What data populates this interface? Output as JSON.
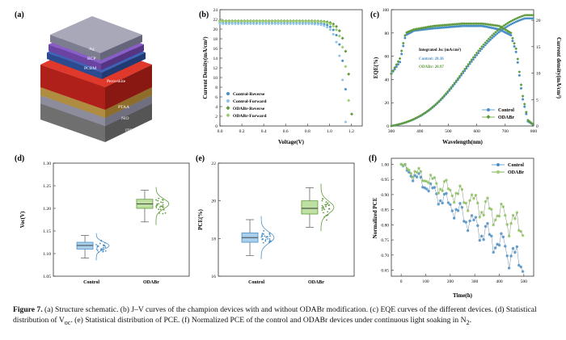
{
  "panels": {
    "a": {
      "label": "(a)",
      "layers": [
        "Ag",
        "BCP",
        "PCBM",
        "Perovskite",
        "PTAA",
        "NiO",
        "ITO"
      ]
    },
    "b": {
      "label": "(b)",
      "ylabel": "Current Density(mA/cm²)",
      "xlabel": "Voltage(V)",
      "legend": [
        "Control-Reverse",
        "Control-Forward",
        "ODABr-Reverse",
        "ODABr-Forward"
      ]
    },
    "c": {
      "label": "(c)",
      "ylabel": "EQE(%)",
      "ylabel2": "Current density(mA/cm²)",
      "xlabel": "Wavelength(nm)",
      "annotation_title": "Integrated Jsc (mA/cm²)",
      "annotation_control": "Control:  20.36",
      "annotation_odabr": "ODABr:   20.97",
      "legend": [
        "Control",
        "ODABr"
      ]
    },
    "d": {
      "label": "(d)",
      "ylabel": "Voc(V)"
    },
    "e": {
      "label": "(e)",
      "ylabel": "PCE(%)"
    },
    "f": {
      "label": "(f)",
      "ylabel": "Normalized PCE",
      "xlabel": "Time(h)",
      "legend": [
        "Control",
        "ODABr"
      ]
    }
  },
  "caption": {
    "fig_label": "Figure 7.",
    "text_1": "(a) Structure schematic. (b) J–V curves of the champion devices with and without ODABr modification. (c) EQE curves of the different devices. (d) Statistical distribution of V",
    "text_sub": "oc",
    "text_2": ". (e) Statistical distribution of PCE. (f) Normalized PCE of the control and ODABr devices under continuous light soaking in N",
    "text_sub2": "2",
    "text_3": "."
  },
  "colors": {
    "control": "#4a90c8",
    "control_light": "#8ec3ea",
    "odabr": "#5f9a3c",
    "odabr_light": "#9ccd6e"
  },
  "chart_data": [
    {
      "id": "b",
      "type": "line",
      "title": "",
      "xlabel": "Voltage(V)",
      "ylabel": "Current Density(mA/cm²)",
      "xlim": [
        0,
        1.3
      ],
      "ylim": [
        0,
        24
      ],
      "xticks": [
        "0.0",
        "0.2",
        "0.4",
        "0.6",
        "0.8",
        "1.0",
        "1.2"
      ],
      "yticks": [
        "0",
        "2",
        "4",
        "6",
        "8",
        "10",
        "12",
        "14",
        "16",
        "18",
        "20",
        "22",
        "24"
      ],
      "series": [
        {
          "name": "Control-Reverse",
          "jsc": 21.3,
          "voc": 1.17
        },
        {
          "name": "Control-Forward",
          "jsc": 21.1,
          "voc": 1.15
        },
        {
          "name": "ODABr-Reverse",
          "jsc": 21.7,
          "voc": 1.21
        },
        {
          "name": "ODABr-Forward",
          "jsc": 21.6,
          "voc": 1.19
        }
      ]
    },
    {
      "id": "c",
      "type": "line",
      "xlabel": "Wavelength(nm)",
      "ylabel": "EQE(%)",
      "ylabel2": "Current density(mA/cm²)",
      "xlim": [
        300,
        800
      ],
      "ylim": [
        0,
        100
      ],
      "ylim2": [
        0,
        22
      ],
      "xticks": [
        "300",
        "400",
        "500",
        "600",
        "700",
        "800"
      ],
      "yticks": [
        "0",
        "20",
        "40",
        "60",
        "80",
        "100"
      ],
      "yticks2": [
        "0",
        "5",
        "10",
        "15",
        "20"
      ],
      "series": [
        {
          "name": "Control",
          "eqe": [
            [
              300,
              45
            ],
            [
              330,
              55
            ],
            [
              350,
              78
            ],
            [
              380,
              82
            ],
            [
              450,
              84
            ],
            [
              550,
              86
            ],
            [
              620,
              86
            ],
            [
              680,
              83
            ],
            [
              720,
              78
            ],
            [
              740,
              62
            ],
            [
              760,
              25
            ],
            [
              780,
              4
            ],
            [
              800,
              1
            ]
          ],
          "integrated_jsc": 20.36
        },
        {
          "name": "ODABr",
          "eqe": [
            [
              300,
              45
            ],
            [
              330,
              58
            ],
            [
              350,
              80
            ],
            [
              380,
              83
            ],
            [
              450,
              86
            ],
            [
              550,
              88
            ],
            [
              620,
              88
            ],
            [
              680,
              86
            ],
            [
              720,
              80
            ],
            [
              740,
              65
            ],
            [
              760,
              28
            ],
            [
              780,
              5
            ],
            [
              800,
              1
            ]
          ],
          "integrated_jsc": 20.97
        }
      ]
    },
    {
      "id": "d",
      "type": "box",
      "ylabel": "Voc(V)",
      "categories": [
        "Control",
        "ODABr"
      ],
      "ylim": [
        1.05,
        1.3
      ],
      "yticks": [
        "1.05",
        "1.10",
        "1.15",
        "1.20",
        "1.25",
        "1.30"
      ],
      "series": [
        {
          "name": "Control",
          "min": 1.09,
          "q1": 1.11,
          "median": 1.118,
          "q3": 1.125,
          "max": 1.14
        },
        {
          "name": "ODABr",
          "min": 1.17,
          "q1": 1.2,
          "median": 1.21,
          "q3": 1.22,
          "max": 1.24
        }
      ]
    },
    {
      "id": "e",
      "type": "box",
      "ylabel": "PCE(%)",
      "categories": [
        "Control",
        "ODABr"
      ],
      "ylim": [
        16,
        22
      ],
      "yticks": [
        "16",
        "18",
        "20",
        "22"
      ],
      "series": [
        {
          "name": "Control",
          "min": 17.1,
          "q1": 17.8,
          "median": 18.05,
          "q3": 18.3,
          "max": 19.0
        },
        {
          "name": "ODABr",
          "min": 18.6,
          "q1": 19.3,
          "median": 19.6,
          "q3": 20.0,
          "max": 20.7
        }
      ]
    },
    {
      "id": "f",
      "type": "line",
      "xlabel": "Time(h)",
      "ylabel": "Normalized PCE",
      "xlim": [
        -40,
        540
      ],
      "ylim": [
        0.63,
        1.02
      ],
      "xticks": [
        "0",
        "100",
        "200",
        "300",
        "400",
        "500"
      ],
      "yticks": [
        "0.65",
        "0.70",
        "0.75",
        "0.80",
        "0.85",
        "0.90",
        "0.95",
        "1.00"
      ],
      "series": [
        {
          "name": "Control",
          "start": 1.0,
          "end": 0.68
        },
        {
          "name": "ODABr",
          "start": 1.0,
          "end": 0.8
        }
      ]
    }
  ]
}
